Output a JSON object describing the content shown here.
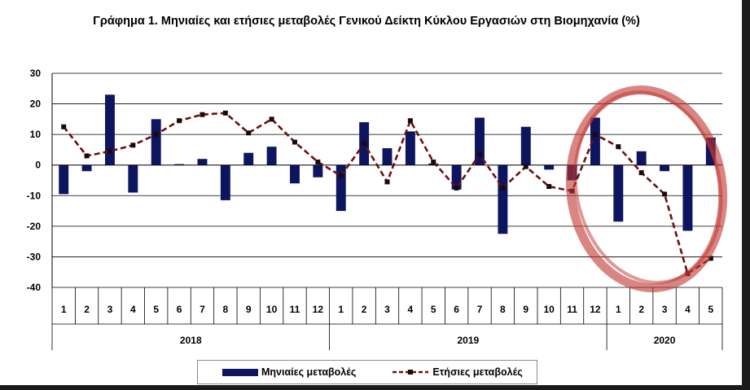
{
  "title": "Γράφημα 1. Μηνιαίες και ετήσιες μεταβολές  Γενικού Δείκτη Κύκλου Εργασιών στη Βιομηχανία (%)",
  "colors": {
    "bars": "#0d1560",
    "line": "#6b0f0f",
    "highlight": "#c0332e"
  },
  "chart_data": {
    "type": "bar",
    "categories": [
      "1",
      "2",
      "3",
      "4",
      "5",
      "6",
      "7",
      "8",
      "9",
      "10",
      "11",
      "12",
      "1",
      "2",
      "3",
      "4",
      "5",
      "6",
      "7",
      "8",
      "9",
      "10",
      "11",
      "12",
      "1",
      "2",
      "3",
      "4",
      "5"
    ],
    "groups": [
      {
        "label": "2018",
        "count": 12
      },
      {
        "label": "2019",
        "count": 12
      },
      {
        "label": "2020",
        "count": 5
      }
    ],
    "series": [
      {
        "name": "Μηνιαίες μεταβολές",
        "type": "bar",
        "values": [
          -9.5,
          -2,
          23,
          -9,
          15,
          0.3,
          2,
          -11.5,
          4,
          6,
          -6,
          -4,
          -15,
          14,
          5.5,
          11,
          0.5,
          -8,
          15.5,
          -22.5,
          12.5,
          -1.5,
          -5,
          15.5,
          -18.5,
          4.5,
          -2,
          -21.5,
          9
        ]
      },
      {
        "name": "Ετήσιες μεταβολές",
        "type": "line",
        "style": "dashed with square markers",
        "values": [
          12.5,
          3,
          4.5,
          6.5,
          10,
          14.5,
          16.5,
          17,
          10.5,
          15,
          7.5,
          1,
          -3.5,
          7,
          -5.5,
          14.5,
          1,
          -7.5,
          3.5,
          -7.5,
          -0.5,
          -7,
          -8.5,
          10,
          6,
          -2.5,
          -9.5,
          -35.5,
          -30.5
        ]
      }
    ],
    "yticks": [
      30,
      20,
      10,
      0,
      -10,
      -20,
      -30,
      -40
    ],
    "ylim": [
      -40,
      30
    ],
    "grid": true,
    "legend_position": "bottom",
    "annotation": "hand-drawn red circle around 2020 data"
  }
}
